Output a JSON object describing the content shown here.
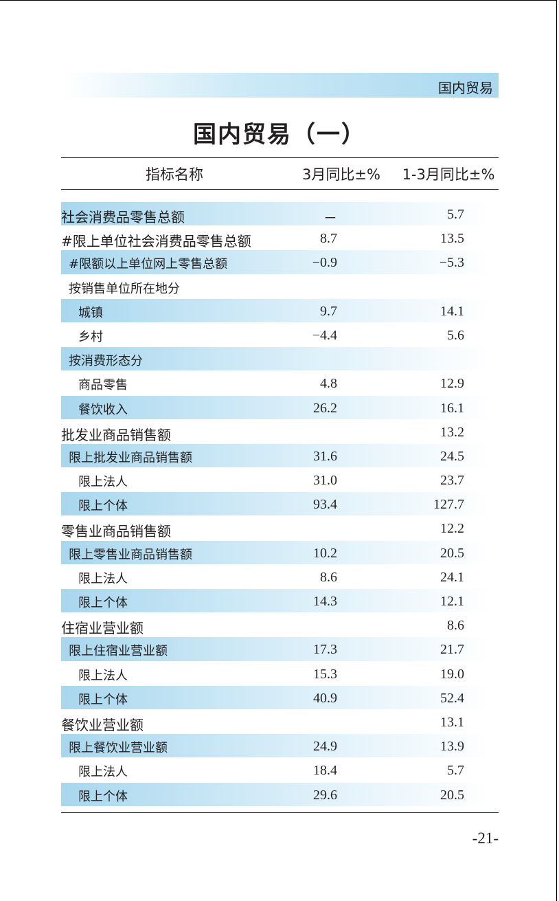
{
  "header": {
    "section_label": "国内贸易"
  },
  "title": "国内贸易（一）",
  "table": {
    "columns": [
      "指标名称",
      "3月同比±%",
      "1-3月同比±%"
    ],
    "rows": [
      {
        "label": "社会消费品零售总额",
        "level": 0,
        "shaded": true,
        "v1": "－",
        "v2": "5.7"
      },
      {
        "label": "#限上单位社会消费品零售总额",
        "level": 0,
        "shaded": false,
        "v1": "8.7",
        "v2": "13.5"
      },
      {
        "label": "#限额以上单位网上零售总额",
        "level": 1,
        "shaded": true,
        "v1": "−0.9",
        "v2": "−5.3"
      },
      {
        "label": "按销售单位所在地分",
        "level": 1,
        "shaded": false,
        "v1": "",
        "v2": ""
      },
      {
        "label": "城镇",
        "level": 2,
        "shaded": true,
        "v1": "9.7",
        "v2": "14.1"
      },
      {
        "label": "乡村",
        "level": 2,
        "shaded": false,
        "v1": "−4.4",
        "v2": "5.6"
      },
      {
        "label": "按消费形态分",
        "level": 1,
        "shaded": true,
        "v1": "",
        "v2": ""
      },
      {
        "label": "商品零售",
        "level": 2,
        "shaded": false,
        "v1": "4.8",
        "v2": "12.9"
      },
      {
        "label": "餐饮收入",
        "level": 2,
        "shaded": true,
        "v1": "26.2",
        "v2": "16.1"
      },
      {
        "label": "批发业商品销售额",
        "level": 0,
        "shaded": false,
        "v1": "",
        "v2": "13.2"
      },
      {
        "label": "限上批发业商品销售额",
        "level": 1,
        "shaded": true,
        "v1": "31.6",
        "v2": "24.5"
      },
      {
        "label": "限上法人",
        "level": 2,
        "shaded": false,
        "v1": "31.0",
        "v2": "23.7"
      },
      {
        "label": "限上个体",
        "level": 2,
        "shaded": true,
        "v1": "93.4",
        "v2": "127.7"
      },
      {
        "label": "零售业商品销售额",
        "level": 0,
        "shaded": false,
        "v1": "",
        "v2": "12.2"
      },
      {
        "label": "限上零售业商品销售额",
        "level": 1,
        "shaded": true,
        "v1": "10.2",
        "v2": "20.5"
      },
      {
        "label": "限上法人",
        "level": 2,
        "shaded": false,
        "v1": "8.6",
        "v2": "24.1"
      },
      {
        "label": "限上个体",
        "level": 2,
        "shaded": true,
        "v1": "14.3",
        "v2": "12.1"
      },
      {
        "label": "住宿业营业额",
        "level": 0,
        "shaded": false,
        "v1": "",
        "v2": "8.6"
      },
      {
        "label": "限上住宿业营业额",
        "level": 1,
        "shaded": true,
        "v1": "17.3",
        "v2": "21.7"
      },
      {
        "label": "限上法人",
        "level": 2,
        "shaded": false,
        "v1": "15.3",
        "v2": "19.0"
      },
      {
        "label": "限上个体",
        "level": 2,
        "shaded": true,
        "v1": "40.9",
        "v2": "52.4"
      },
      {
        "label": "餐饮业营业额",
        "level": 0,
        "shaded": false,
        "v1": "",
        "v2": "13.1"
      },
      {
        "label": "限上餐饮业营业额",
        "level": 1,
        "shaded": true,
        "v1": "24.9",
        "v2": "13.9"
      },
      {
        "label": "限上法人",
        "level": 2,
        "shaded": false,
        "v1": "18.4",
        "v2": "5.7"
      },
      {
        "label": "限上个体",
        "level": 2,
        "shaded": true,
        "v1": "29.6",
        "v2": "20.5"
      }
    ]
  },
  "footer": {
    "page_number": "-21-"
  }
}
